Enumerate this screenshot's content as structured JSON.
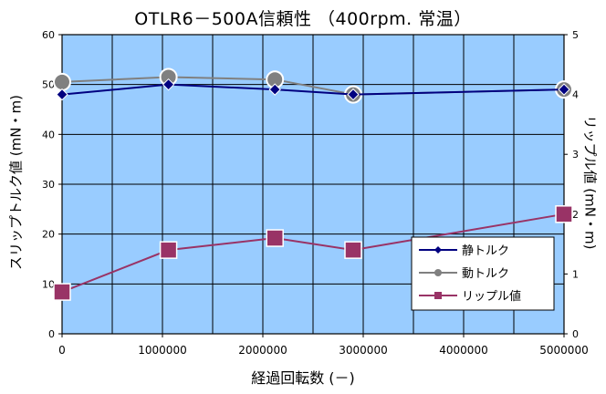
{
  "chart_data": {
    "type": "line",
    "title": "OTLR6－500A信頼性 （400rpm. 常温）",
    "xlabel": "経過回転数 (－)",
    "ylabel": "スリップトルク値 (mN・m)",
    "y2label": "リップル値 (mN・m)",
    "xlim": [
      0,
      5000000
    ],
    "ylim": [
      0,
      60
    ],
    "y2lim": [
      0,
      5
    ],
    "xticks": [
      "0",
      "1000000",
      "2000000",
      "3000000",
      "4000000",
      "5000000"
    ],
    "yticks": [
      "0",
      "10",
      "20",
      "30",
      "40",
      "50",
      "60"
    ],
    "y2ticks": [
      "0",
      "1",
      "2",
      "3",
      "4",
      "5"
    ],
    "grid": true,
    "legend_position": "bottom-right",
    "series": [
      {
        "name": "静トルク",
        "axis": "left",
        "color": "#000080",
        "marker": "diamond",
        "x": [
          0,
          1060000,
          2120000,
          2900000,
          5000000
        ],
        "values": [
          48,
          50,
          49,
          48,
          49
        ]
      },
      {
        "name": "動トルク",
        "axis": "left",
        "color": "#808080",
        "marker": "circle",
        "x": [
          0,
          1060000,
          2120000,
          2900000,
          5000000
        ],
        "values": [
          50.5,
          51.5,
          51,
          48,
          49
        ]
      },
      {
        "name": "リップル値",
        "axis": "right",
        "color": "#993366",
        "marker": "square",
        "x": [
          0,
          1060000,
          2120000,
          2900000,
          5000000
        ],
        "values": [
          0.7,
          1.4,
          1.6,
          1.4,
          2.0
        ]
      }
    ],
    "colors": {
      "plot_bg": "#99ccff",
      "grid": "#000000"
    }
  }
}
